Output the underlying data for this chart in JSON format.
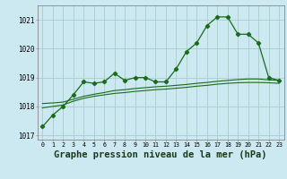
{
  "title": "Graphe pression niveau de la mer (hPa)",
  "background_color": "#cce8f0",
  "line_color": "#1a6b1a",
  "grid_color": "#aacccc",
  "hours": [
    0,
    1,
    2,
    3,
    4,
    5,
    6,
    7,
    8,
    9,
    10,
    11,
    12,
    13,
    14,
    15,
    16,
    17,
    18,
    19,
    20,
    21,
    22,
    23
  ],
  "series1": [
    1017.3,
    1017.7,
    1018.0,
    1018.4,
    1018.85,
    1018.8,
    1018.85,
    1019.15,
    1018.9,
    1019.0,
    1019.0,
    1018.85,
    1018.85,
    1019.3,
    1019.9,
    1020.2,
    1020.8,
    1021.1,
    1021.1,
    1020.5,
    1020.5,
    1020.2,
    1019.0,
    1018.9
  ],
  "series2": [
    1018.1,
    1018.12,
    1018.15,
    1018.25,
    1018.35,
    1018.42,
    1018.48,
    1018.55,
    1018.58,
    1018.62,
    1018.65,
    1018.68,
    1018.7,
    1018.73,
    1018.76,
    1018.8,
    1018.83,
    1018.87,
    1018.9,
    1018.93,
    1018.95,
    1018.95,
    1018.92,
    1018.9
  ],
  "series3": [
    1017.95,
    1018.0,
    1018.05,
    1018.18,
    1018.28,
    1018.35,
    1018.4,
    1018.45,
    1018.48,
    1018.52,
    1018.55,
    1018.58,
    1018.6,
    1018.63,
    1018.66,
    1018.7,
    1018.73,
    1018.77,
    1018.8,
    1018.82,
    1018.83,
    1018.83,
    1018.82,
    1018.8
  ],
  "ylim": [
    1016.85,
    1021.5
  ],
  "yticks": [
    1017,
    1018,
    1019,
    1020,
    1021
  ],
  "title_fontsize": 7.5
}
